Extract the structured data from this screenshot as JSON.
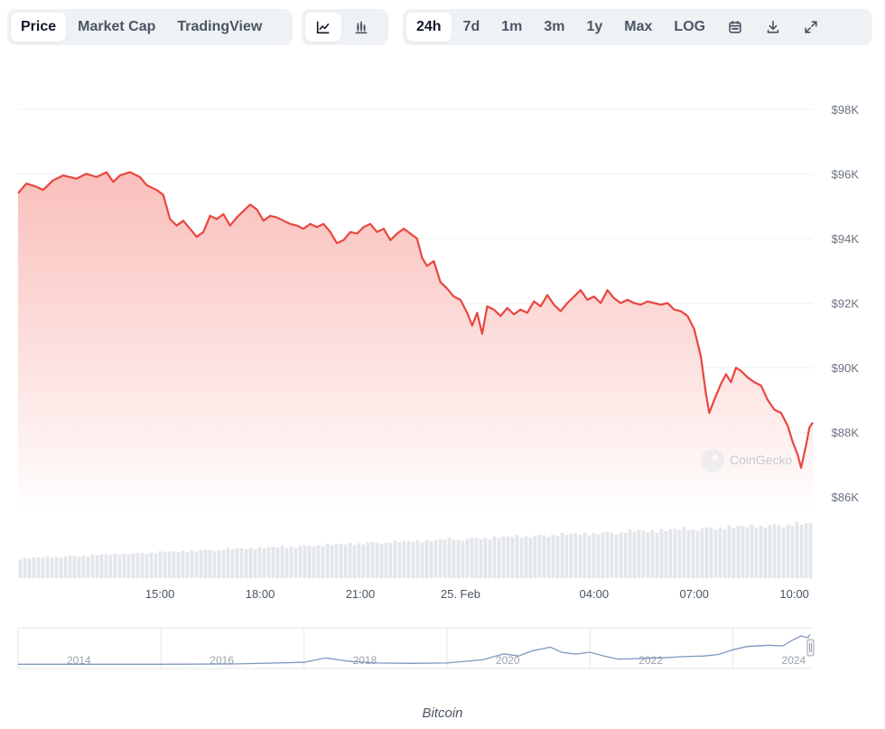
{
  "toolbar": {
    "view_tabs": [
      {
        "label": "Price",
        "active": true
      },
      {
        "label": "Market Cap",
        "active": false
      },
      {
        "label": "TradingView",
        "active": false
      }
    ],
    "chart_type_icons": [
      {
        "icon": "line-chart-icon",
        "active": true
      },
      {
        "icon": "candlestick-chart-icon",
        "active": false
      }
    ],
    "ranges": [
      {
        "label": "24h",
        "active": true
      },
      {
        "label": "7d",
        "active": false
      },
      {
        "label": "1m",
        "active": false
      },
      {
        "label": "3m",
        "active": false
      },
      {
        "label": "1y",
        "active": false
      },
      {
        "label": "Max",
        "active": false
      },
      {
        "label": "LOG",
        "active": false
      }
    ],
    "action_icons": [
      "calendar-icon",
      "download-icon",
      "expand-icon"
    ]
  },
  "watermark": "CoinGecko",
  "caption": "Bitcoin",
  "colors": {
    "line": "#e8473f",
    "fill_top": "#f9bcb8",
    "volume": "#e3e6ea",
    "grid": "#eef0f2",
    "nav_line": "#7f97bf"
  },
  "chart_data": {
    "type": "area",
    "title": "",
    "xlabel": "",
    "ylabel": "",
    "ylim": [
      85500,
      98500
    ],
    "y_ticks": [
      98000,
      96000,
      94000,
      92000,
      90000,
      88000,
      86000
    ],
    "y_tick_labels": [
      "$98K",
      "$96K",
      "$94K",
      "$92K",
      "$90K",
      "$88K",
      "$86K"
    ],
    "x_ticks": [
      {
        "label": "15:00",
        "t": 3.5
      },
      {
        "label": "18:00",
        "t": 6.5
      },
      {
        "label": "21:00",
        "t": 9.5
      },
      {
        "label": "25. Feb",
        "t": 12.5
      },
      {
        "label": "04:00",
        "t": 16.5
      },
      {
        "label": "07:00",
        "t": 19.5
      },
      {
        "label": "10:00",
        "t": 22.5
      }
    ],
    "xlim": [
      -0.75,
      23.05
    ],
    "series": [
      {
        "price": [
          [
            -0.75,
            95400
          ],
          [
            -0.5,
            95700
          ],
          [
            -0.2,
            95600
          ],
          [
            0.0,
            95500
          ],
          [
            0.3,
            95800
          ],
          [
            0.6,
            95950
          ],
          [
            1.0,
            95850
          ],
          [
            1.3,
            96000
          ],
          [
            1.6,
            95900
          ],
          [
            1.9,
            96050
          ],
          [
            2.1,
            95750
          ],
          [
            2.3,
            95950
          ],
          [
            2.6,
            96050
          ],
          [
            2.9,
            95900
          ],
          [
            3.1,
            95650
          ],
          [
            3.4,
            95500
          ],
          [
            3.6,
            95350
          ],
          [
            3.8,
            94600
          ],
          [
            4.0,
            94400
          ],
          [
            4.2,
            94550
          ],
          [
            4.4,
            94300
          ],
          [
            4.6,
            94050
          ],
          [
            4.8,
            94200
          ],
          [
            5.0,
            94700
          ],
          [
            5.2,
            94600
          ],
          [
            5.4,
            94750
          ],
          [
            5.6,
            94400
          ],
          [
            5.8,
            94650
          ],
          [
            6.0,
            94850
          ],
          [
            6.2,
            95050
          ],
          [
            6.4,
            94900
          ],
          [
            6.6,
            94550
          ],
          [
            6.8,
            94700
          ],
          [
            7.0,
            94650
          ],
          [
            7.2,
            94550
          ],
          [
            7.4,
            94450
          ],
          [
            7.6,
            94400
          ],
          [
            7.8,
            94300
          ],
          [
            8.0,
            94450
          ],
          [
            8.2,
            94350
          ],
          [
            8.4,
            94450
          ],
          [
            8.6,
            94200
          ],
          [
            8.8,
            93850
          ],
          [
            9.0,
            93950
          ],
          [
            9.2,
            94200
          ],
          [
            9.4,
            94150
          ],
          [
            9.6,
            94350
          ],
          [
            9.8,
            94450
          ],
          [
            10.0,
            94200
          ],
          [
            10.2,
            94300
          ],
          [
            10.4,
            93950
          ],
          [
            10.6,
            94150
          ],
          [
            10.8,
            94300
          ],
          [
            11.0,
            94150
          ],
          [
            11.2,
            94000
          ],
          [
            11.35,
            93400
          ],
          [
            11.5,
            93150
          ],
          [
            11.7,
            93300
          ],
          [
            11.9,
            92650
          ],
          [
            12.1,
            92450
          ],
          [
            12.3,
            92200
          ],
          [
            12.5,
            92100
          ],
          [
            12.7,
            91700
          ],
          [
            12.85,
            91300
          ],
          [
            13.0,
            91700
          ],
          [
            13.15,
            91050
          ],
          [
            13.3,
            91900
          ],
          [
            13.5,
            91800
          ],
          [
            13.7,
            91600
          ],
          [
            13.9,
            91850
          ],
          [
            14.1,
            91650
          ],
          [
            14.3,
            91800
          ],
          [
            14.5,
            91700
          ],
          [
            14.7,
            92050
          ],
          [
            14.9,
            91900
          ],
          [
            15.1,
            92250
          ],
          [
            15.3,
            91950
          ],
          [
            15.5,
            91750
          ],
          [
            15.7,
            92000
          ],
          [
            15.9,
            92200
          ],
          [
            16.1,
            92400
          ],
          [
            16.3,
            92100
          ],
          [
            16.5,
            92200
          ],
          [
            16.7,
            92000
          ],
          [
            16.9,
            92400
          ],
          [
            17.1,
            92150
          ],
          [
            17.3,
            92000
          ],
          [
            17.5,
            92100
          ],
          [
            17.7,
            92000
          ],
          [
            17.9,
            91950
          ],
          [
            18.1,
            92050
          ],
          [
            18.3,
            92000
          ],
          [
            18.5,
            91950
          ],
          [
            18.7,
            92000
          ],
          [
            18.9,
            91800
          ],
          [
            19.1,
            91750
          ],
          [
            19.3,
            91600
          ],
          [
            19.5,
            91200
          ],
          [
            19.7,
            90350
          ],
          [
            19.85,
            89200
          ],
          [
            19.95,
            88600
          ],
          [
            20.1,
            89000
          ],
          [
            20.3,
            89500
          ],
          [
            20.45,
            89800
          ],
          [
            20.6,
            89550
          ],
          [
            20.75,
            90000
          ],
          [
            20.9,
            89900
          ],
          [
            21.1,
            89700
          ],
          [
            21.3,
            89550
          ],
          [
            21.5,
            89450
          ],
          [
            21.7,
            89000
          ],
          [
            21.9,
            88700
          ],
          [
            22.1,
            88600
          ],
          [
            22.3,
            88200
          ],
          [
            22.45,
            87700
          ],
          [
            22.6,
            87300
          ],
          [
            22.7,
            86900
          ],
          [
            22.85,
            87600
          ],
          [
            22.95,
            88150
          ],
          [
            23.05,
            88300
          ]
        ]
      }
    ],
    "volume_trend": [
      0.32,
      0.88
    ],
    "navigator": {
      "labels": [
        "2014",
        "2016",
        "2018",
        "2020",
        "2022",
        "2024"
      ],
      "values": [
        [
          0.0,
          0.02
        ],
        [
          1.0,
          0.02
        ],
        [
          2.0,
          0.02
        ],
        [
          3.0,
          0.03
        ],
        [
          4.0,
          0.08
        ],
        [
          4.3,
          0.22
        ],
        [
          4.6,
          0.12
        ],
        [
          5.0,
          0.06
        ],
        [
          5.5,
          0.05
        ],
        [
          6.0,
          0.06
        ],
        [
          6.5,
          0.16
        ],
        [
          6.8,
          0.35
        ],
        [
          7.0,
          0.28
        ],
        [
          7.2,
          0.45
        ],
        [
          7.45,
          0.56
        ],
        [
          7.6,
          0.4
        ],
        [
          7.8,
          0.34
        ],
        [
          8.0,
          0.4
        ],
        [
          8.2,
          0.28
        ],
        [
          8.4,
          0.18
        ],
        [
          8.7,
          0.2
        ],
        [
          9.0,
          0.22
        ],
        [
          9.3,
          0.26
        ],
        [
          9.6,
          0.28
        ],
        [
          9.8,
          0.33
        ],
        [
          10.0,
          0.48
        ],
        [
          10.2,
          0.58
        ],
        [
          10.5,
          0.62
        ],
        [
          10.7,
          0.6
        ],
        [
          10.85,
          0.8
        ],
        [
          10.95,
          0.91
        ],
        [
          11.05,
          0.86
        ],
        [
          11.08,
          0.96
        ]
      ]
    }
  }
}
